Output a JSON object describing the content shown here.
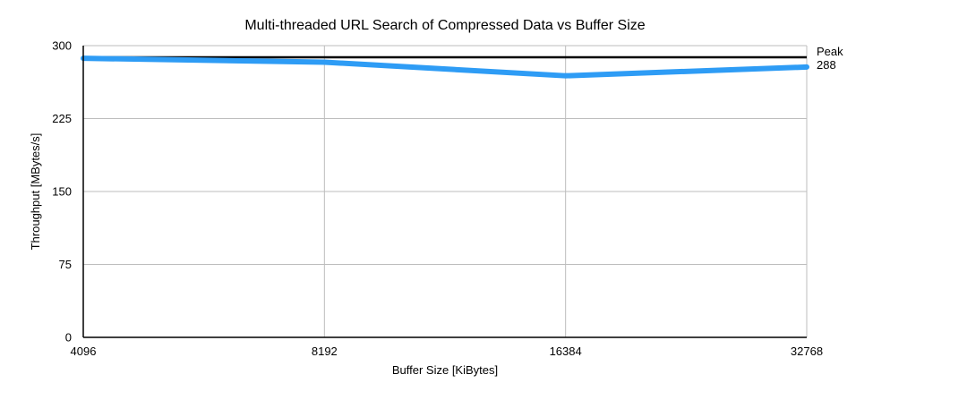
{
  "chart_data": {
    "type": "line",
    "title": "Multi-threaded URL Search of Compressed Data vs Buffer Size",
    "xlabel": "Buffer Size [KiBytes]",
    "ylabel": "Throughput [MBytes/s]",
    "categories": [
      "4096",
      "8192",
      "16384",
      "32768"
    ],
    "x_scale": "categorical",
    "ylim": [
      0,
      300
    ],
    "yticks": [
      0,
      75,
      150,
      225,
      300
    ],
    "grid": true,
    "legend": "none",
    "series": [
      {
        "values": [
          287,
          283,
          269,
          278
        ],
        "color": "#2e9cf5"
      }
    ],
    "reference_lines": [
      {
        "value": 288,
        "label_name": "Peak",
        "label_value": "288",
        "color": "#000000"
      }
    ]
  }
}
